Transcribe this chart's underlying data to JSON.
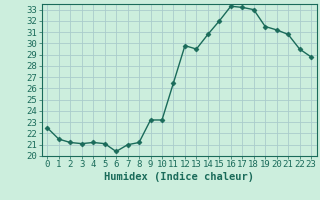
{
  "x": [
    0,
    1,
    2,
    3,
    4,
    5,
    6,
    7,
    8,
    9,
    10,
    11,
    12,
    13,
    14,
    15,
    16,
    17,
    18,
    19,
    20,
    21,
    22,
    23
  ],
  "y": [
    22.5,
    21.5,
    21.2,
    21.1,
    21.2,
    21.1,
    20.4,
    21.0,
    21.2,
    23.2,
    23.2,
    26.5,
    29.8,
    29.5,
    30.8,
    32.0,
    33.3,
    33.2,
    33.0,
    31.5,
    31.2,
    30.8,
    29.5,
    28.8
  ],
  "line_color": "#1a6b5a",
  "marker": "D",
  "marker_size": 2.5,
  "bg_color": "#cceedd",
  "grid_color": "#aacccc",
  "xlabel": "Humidex (Indice chaleur)",
  "ylim": [
    20,
    33.5
  ],
  "xlim": [
    -0.5,
    23.5
  ],
  "yticks": [
    20,
    21,
    22,
    23,
    24,
    25,
    26,
    27,
    28,
    29,
    30,
    31,
    32,
    33
  ],
  "xticks": [
    0,
    1,
    2,
    3,
    4,
    5,
    6,
    7,
    8,
    9,
    10,
    11,
    12,
    13,
    14,
    15,
    16,
    17,
    18,
    19,
    20,
    21,
    22,
    23
  ],
  "title_color": "#1a6b5a",
  "xlabel_fontsize": 7.5,
  "tick_fontsize": 6.5,
  "line_width": 1.0
}
